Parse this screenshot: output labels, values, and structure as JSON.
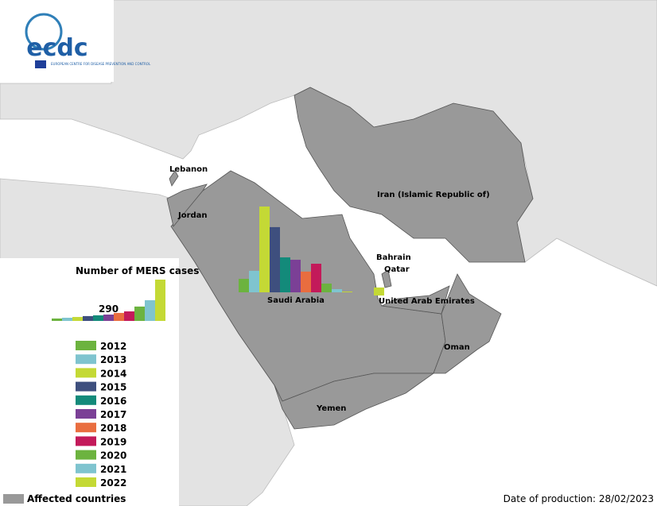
{
  "logo": {
    "acronym": "ecdc",
    "subtitle": "EUROPEAN CENTRE FOR DISEASE PREVENTION AND CONTROL"
  },
  "chart_data": {
    "type": "bar",
    "title": "Number of MERS cases",
    "scale_label": 290,
    "categories": [
      "2012",
      "2013",
      "2014",
      "2015",
      "2016",
      "2017",
      "2018",
      "2019",
      "2020",
      "2021",
      "2022"
    ],
    "colors": [
      "#6cb33f",
      "#7fc4cf",
      "#c4d935",
      "#3e4f7e",
      "#138a7a",
      "#7b4096",
      "#e96d3f",
      "#c31a5a",
      "#6cb33f",
      "#7fc4cf",
      "#c4d935"
    ],
    "scale_bar_values": [
      19,
      25,
      31,
      38,
      44,
      50,
      63,
      75,
      113,
      163,
      325
    ],
    "countries": [
      {
        "name": "Saudi Arabia",
        "values": [
          106,
          169,
          675,
          513,
          275,
          256,
          163,
          225,
          69,
          25,
          6
        ]
      },
      {
        "name": "United Arab Emirates",
        "values": [
          0,
          0,
          0,
          0,
          0,
          0,
          0,
          0,
          0,
          0,
          63
        ]
      }
    ],
    "labels": [
      "Lebanon",
      "Jordan",
      "Iran  (Islamic Republic of)",
      "Bahrain",
      "Qatar",
      "Oman",
      "Yemen"
    ]
  },
  "footer": {
    "legend": "Affected countries",
    "date": "Date of production: 28/02/2023"
  }
}
